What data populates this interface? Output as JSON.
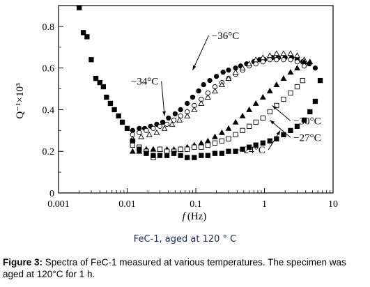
{
  "chart_data": {
    "type": "scatter",
    "xscale": "log",
    "xlim": [
      0.001,
      10
    ],
    "ylim": [
      0,
      0.9
    ],
    "xticks": [
      "0.001",
      "0.01",
      "0.1",
      "1",
      "10"
    ],
    "yticks": [
      "0",
      "0.2",
      "0.4",
      "0.6",
      "0.8"
    ],
    "xlabel_italic": "f",
    "xlabel_unit": "(Hz)",
    "ylabel": "Q⁻¹×10³",
    "grid": false,
    "series": [
      {
        "name": "−36°C",
        "marker": "filled-circle",
        "points": [
          [
            0.012,
            0.3
          ],
          [
            0.015,
            0.31
          ],
          [
            0.018,
            0.31
          ],
          [
            0.022,
            0.32
          ],
          [
            0.027,
            0.33
          ],
          [
            0.033,
            0.34
          ],
          [
            0.04,
            0.36
          ],
          [
            0.05,
            0.38
          ],
          [
            0.06,
            0.4
          ],
          [
            0.075,
            0.43
          ],
          [
            0.09,
            0.46
          ],
          [
            0.11,
            0.49
          ],
          [
            0.13,
            0.52
          ],
          [
            0.16,
            0.54
          ],
          [
            0.2,
            0.56
          ],
          [
            0.25,
            0.58
          ],
          [
            0.3,
            0.59
          ],
          [
            0.38,
            0.6
          ],
          [
            0.45,
            0.61
          ],
          [
            0.55,
            0.62
          ],
          [
            0.7,
            0.63
          ],
          [
            0.85,
            0.64
          ],
          [
            1.0,
            0.64
          ],
          [
            1.3,
            0.65
          ],
          [
            1.6,
            0.65
          ],
          [
            2.0,
            0.65
          ],
          [
            2.5,
            0.65
          ],
          [
            3.0,
            0.64
          ],
          [
            3.6,
            0.63
          ],
          [
            4.5,
            0.62
          ],
          [
            5.5,
            0.6
          ]
        ]
      },
      {
        "name": "−34°C",
        "marker": "open-circle",
        "points": [
          [
            0.012,
            0.28
          ],
          [
            0.015,
            0.29
          ],
          [
            0.019,
            0.3
          ],
          [
            0.024,
            0.31
          ],
          [
            0.03,
            0.32
          ],
          [
            0.038,
            0.33
          ],
          [
            0.048,
            0.35
          ],
          [
            0.06,
            0.37
          ],
          [
            0.075,
            0.39
          ],
          [
            0.095,
            0.42
          ],
          [
            0.12,
            0.45
          ],
          [
            0.15,
            0.48
          ],
          [
            0.19,
            0.51
          ],
          [
            0.24,
            0.53
          ],
          [
            0.3,
            0.55
          ],
          [
            0.38,
            0.57
          ],
          [
            0.48,
            0.59
          ],
          [
            0.6,
            0.61
          ],
          [
            0.75,
            0.62
          ],
          [
            0.95,
            0.63
          ],
          [
            1.2,
            0.64
          ],
          [
            1.5,
            0.64
          ],
          [
            1.9,
            0.64
          ],
          [
            2.4,
            0.64
          ],
          [
            3.0,
            0.63
          ],
          [
            3.8,
            0.61
          ]
        ]
      },
      {
        "name": "−36°C triangles",
        "marker": "open-triangle",
        "points": [
          [
            0.012,
            0.26
          ],
          [
            0.016,
            0.27
          ],
          [
            0.021,
            0.28
          ],
          [
            0.027,
            0.29
          ],
          [
            0.035,
            0.31
          ],
          [
            0.045,
            0.33
          ],
          [
            0.058,
            0.35
          ],
          [
            0.075,
            0.37
          ],
          [
            0.095,
            0.4
          ],
          [
            0.12,
            0.43
          ],
          [
            0.15,
            0.46
          ],
          [
            0.19,
            0.49
          ],
          [
            0.24,
            0.52
          ],
          [
            0.3,
            0.55
          ],
          [
            0.38,
            0.58
          ],
          [
            0.48,
            0.6
          ],
          [
            0.6,
            0.62
          ],
          [
            0.75,
            0.64
          ],
          [
            0.95,
            0.65
          ],
          [
            1.2,
            0.66
          ],
          [
            1.5,
            0.67
          ],
          [
            1.9,
            0.67
          ],
          [
            2.4,
            0.67
          ],
          [
            3.0,
            0.66
          ],
          [
            3.8,
            0.64
          ]
        ]
      },
      {
        "name": "−30°C",
        "marker": "filled-triangle",
        "points": [
          [
            0.012,
            0.2
          ],
          [
            0.015,
            0.2
          ],
          [
            0.019,
            0.21
          ],
          [
            0.024,
            0.21
          ],
          [
            0.03,
            0.21
          ],
          [
            0.038,
            0.21
          ],
          [
            0.048,
            0.21
          ],
          [
            0.06,
            0.21
          ],
          [
            0.075,
            0.22
          ],
          [
            0.095,
            0.23
          ],
          [
            0.12,
            0.24
          ],
          [
            0.15,
            0.25
          ],
          [
            0.19,
            0.27
          ],
          [
            0.24,
            0.29
          ],
          [
            0.3,
            0.31
          ],
          [
            0.38,
            0.34
          ],
          [
            0.48,
            0.37
          ],
          [
            0.6,
            0.4
          ],
          [
            0.75,
            0.43
          ],
          [
            0.95,
            0.46
          ],
          [
            1.2,
            0.49
          ],
          [
            1.5,
            0.52
          ],
          [
            1.9,
            0.55
          ],
          [
            2.4,
            0.58
          ],
          [
            3.0,
            0.6
          ],
          [
            3.8,
            0.63
          ],
          [
            4.6,
            0.63
          ]
        ]
      },
      {
        "name": "−27°C",
        "marker": "open-square",
        "points": [
          [
            0.012,
            0.23
          ],
          [
            0.015,
            0.22
          ],
          [
            0.019,
            0.2
          ],
          [
            0.024,
            0.17
          ],
          [
            0.03,
            0.21
          ],
          [
            0.038,
            0.2
          ],
          [
            0.048,
            0.2
          ],
          [
            0.06,
            0.21
          ],
          [
            0.075,
            0.21
          ],
          [
            0.095,
            0.22
          ],
          [
            0.12,
            0.22
          ],
          [
            0.15,
            0.23
          ],
          [
            0.19,
            0.24
          ],
          [
            0.24,
            0.25
          ],
          [
            0.3,
            0.26
          ],
          [
            0.38,
            0.28
          ],
          [
            0.48,
            0.3
          ],
          [
            0.6,
            0.32
          ],
          [
            0.75,
            0.34
          ],
          [
            0.95,
            0.36
          ],
          [
            1.2,
            0.39
          ],
          [
            1.5,
            0.42
          ],
          [
            1.9,
            0.45
          ],
          [
            2.4,
            0.48
          ],
          [
            3.0,
            0.51
          ],
          [
            3.6,
            0.54
          ]
        ]
      },
      {
        "name": "−24°C",
        "marker": "filled-square",
        "points": [
          [
            0.002,
            0.89
          ],
          [
            0.0023,
            0.77
          ],
          [
            0.0026,
            0.75
          ],
          [
            0.003,
            0.64
          ],
          [
            0.0035,
            0.55
          ],
          [
            0.004,
            0.53
          ],
          [
            0.0045,
            0.51
          ],
          [
            0.005,
            0.46
          ],
          [
            0.0057,
            0.43
          ],
          [
            0.0065,
            0.4
          ],
          [
            0.0075,
            0.37
          ],
          [
            0.0085,
            0.34
          ],
          [
            0.01,
            0.31
          ],
          [
            0.012,
            0.25
          ],
          [
            0.015,
            0.21
          ],
          [
            0.019,
            0.19
          ],
          [
            0.024,
            0.18
          ],
          [
            0.03,
            0.18
          ],
          [
            0.038,
            0.18
          ],
          [
            0.048,
            0.19
          ],
          [
            0.06,
            0.18
          ],
          [
            0.075,
            0.17
          ],
          [
            0.095,
            0.17
          ],
          [
            0.12,
            0.18
          ],
          [
            0.15,
            0.18
          ],
          [
            0.19,
            0.19
          ],
          [
            0.24,
            0.19
          ],
          [
            0.3,
            0.2
          ],
          [
            0.38,
            0.2
          ],
          [
            0.48,
            0.21
          ],
          [
            0.6,
            0.22
          ],
          [
            0.75,
            0.23
          ],
          [
            0.95,
            0.24
          ],
          [
            1.2,
            0.25
          ],
          [
            1.5,
            0.26
          ],
          [
            1.9,
            0.28
          ],
          [
            2.4,
            0.3
          ],
          [
            3.0,
            0.32
          ],
          [
            3.8,
            0.35
          ],
          [
            4.6,
            0.39
          ],
          [
            5.5,
            0.44
          ],
          [
            6.5,
            0.54
          ]
        ]
      }
    ],
    "annotations": [
      {
        "text": "−36°C",
        "label_at": [
          0.27,
          0.74
        ],
        "arrow_to": [
          0.09,
          0.59
        ]
      },
      {
        "text": "−34°C",
        "label_at": [
          0.018,
          0.52
        ],
        "arrow_to": [
          0.035,
          0.37
        ]
      },
      {
        "text": "−30°C",
        "label_at": [
          4.2,
          0.33
        ],
        "arrow_to": [
          1.3,
          0.42
        ]
      },
      {
        "text": "−27°C",
        "label_at": [
          4.2,
          0.25
        ],
        "arrow_to": [
          1.2,
          0.35
        ]
      },
      {
        "text": "−24°C",
        "label_at": [
          0.65,
          0.19
        ],
        "arrow_to": [
          1.7,
          0.3
        ]
      }
    ]
  },
  "subtitle": "FeC-1, aged at 120 °  C",
  "caption": {
    "label": "Figure 3:",
    "text": " Spectra of FeC-1 measured at various temperatures. The specimen was aged at 120°C for 1 h."
  }
}
